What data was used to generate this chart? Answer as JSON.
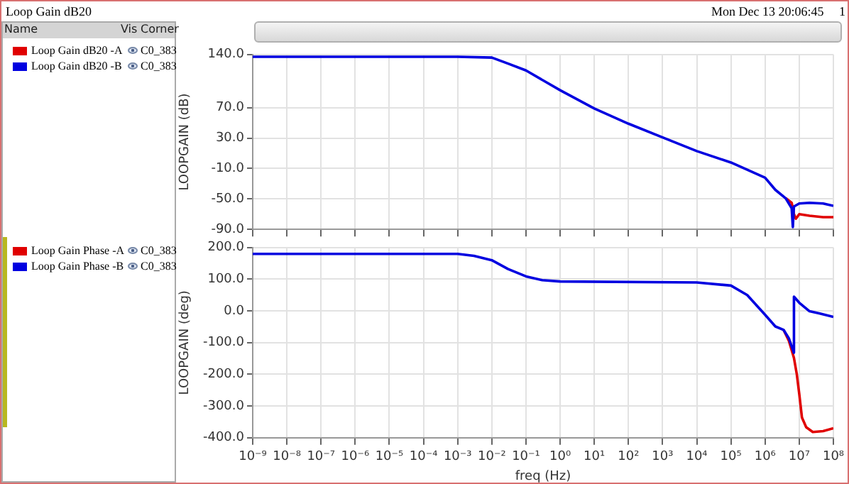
{
  "chart_data": [
    {
      "type": "line",
      "ylabel": "LOOPGAIN (dB)",
      "log": "x",
      "grid": true,
      "legend": "left",
      "tick_labels": "y",
      "annotations": [
        "Loop Gain dB20",
        "Mon Dec 13 20:06:45",
        "1",
        "Name",
        "Vis",
        "Corner",
        "C0_383"
      ],
      "xlim": [
        1e-09,
        100000000.0
      ],
      "xticks": [
        {
          "value": 1e-09,
          "label": null
        },
        {
          "value": 1e-08,
          "label": null
        },
        {
          "value": 1e-07,
          "label": null
        },
        {
          "value": 1e-06,
          "label": null
        },
        {
          "value": 1e-05,
          "label": null
        },
        {
          "value": 0.0001,
          "label": null
        },
        {
          "value": 0.001,
          "label": null
        },
        {
          "value": 0.01,
          "label": null
        },
        {
          "value": 0.1,
          "label": null
        },
        {
          "value": 1,
          "label": null
        },
        {
          "value": 10,
          "label": null
        },
        {
          "value": 100,
          "label": null
        },
        {
          "value": 1000,
          "label": null
        },
        {
          "value": 10000.0,
          "label": null
        },
        {
          "value": 100000.0,
          "label": null
        },
        {
          "value": 1000000.0,
          "label": null
        },
        {
          "value": 10000000.0,
          "label": null
        },
        {
          "value": 100000000.0,
          "label": null
        }
      ],
      "ylim": [
        -90,
        140
      ],
      "yticks": [
        {
          "value": 140,
          "label": "140.0"
        },
        {
          "value": 70,
          "label": "70.0"
        },
        {
          "value": 30,
          "label": "30.0"
        },
        {
          "value": -10,
          "label": "-10.0"
        },
        {
          "value": -50,
          "label": "-50.0"
        },
        {
          "value": -90,
          "label": "-90.0"
        }
      ],
      "series": [
        {
          "name": "Loop Gain dB20 -A",
          "color": "#e00000",
          "x": [
            4000000.0,
            6000000.0,
            6500000.0,
            7000000.0,
            8000000.0,
            10000000.0,
            20000000.0,
            50000000.0,
            100000000.0
          ],
          "values": [
            -49,
            -55,
            -62,
            -70,
            -76,
            -70,
            -72,
            -74,
            -74
          ]
        },
        {
          "name": "Loop Gain dB20 -B",
          "color": "#0000e0",
          "x": [
            1e-09,
            0.001,
            0.01,
            0.03,
            0.1,
            1,
            10,
            100,
            1000,
            10000.0,
            100000.0,
            1000000.0,
            2000000.0,
            4000000.0,
            6000000.0,
            6500000.0,
            7000000.0,
            10000000.0,
            20000000.0,
            50000000.0,
            100000000.0
          ],
          "values": [
            137,
            137,
            136,
            128,
            119,
            93,
            69,
            49,
            31,
            13,
            -2,
            -22,
            -38,
            -49,
            -62,
            -87,
            -60,
            -56,
            -55,
            -56,
            -59
          ]
        }
      ]
    },
    {
      "type": "line",
      "xlabel": "freq (Hz)",
      "ylabel": "LOOPGAIN (deg)",
      "log": "x",
      "grid": true,
      "legend": "left",
      "annotations": [
        "C0_383"
      ],
      "xlim": [
        1e-09,
        100000000.0
      ],
      "xticks": [
        {
          "value": 1e-09,
          "label": "10⁻⁹"
        },
        {
          "value": 1e-08,
          "label": "10⁻⁸"
        },
        {
          "value": 1e-07,
          "label": "10⁻⁷"
        },
        {
          "value": 1e-06,
          "label": "10⁻⁶"
        },
        {
          "value": 1e-05,
          "label": "10⁻⁵"
        },
        {
          "value": 0.0001,
          "label": "10⁻⁴"
        },
        {
          "value": 0.001,
          "label": "10⁻³"
        },
        {
          "value": 0.01,
          "label": "10⁻²"
        },
        {
          "value": 0.1,
          "label": "10⁻¹"
        },
        {
          "value": 1,
          "label": "10⁰"
        },
        {
          "value": 10,
          "label": "10¹"
        },
        {
          "value": 100,
          "label": "10²"
        },
        {
          "value": 1000,
          "label": "10³"
        },
        {
          "value": 10000.0,
          "label": "10⁴"
        },
        {
          "value": 100000.0,
          "label": "10⁵"
        },
        {
          "value": 1000000.0,
          "label": "10⁶"
        },
        {
          "value": 10000000.0,
          "label": "10⁷"
        },
        {
          "value": 100000000.0,
          "label": "10⁸"
        }
      ],
      "ylim": [
        -400,
        200
      ],
      "yticks": [
        {
          "value": 200,
          "label": "200.0"
        },
        {
          "value": 100,
          "label": "100.0"
        },
        {
          "value": 0,
          "label": "0.0"
        },
        {
          "value": -100,
          "label": "-100.0"
        },
        {
          "value": -200,
          "label": "-200.0"
        },
        {
          "value": -300,
          "label": "-300.0"
        },
        {
          "value": -400,
          "label": "-400.0"
        }
      ],
      "series": [
        {
          "name": "Loop Gain Phase -A",
          "color": "#e00000",
          "x": [
            3500000.0,
            5000000.0,
            7000000.0,
            8500000.0,
            10000000.0,
            12000000.0,
            16000000.0,
            25000000.0,
            50000000.0,
            100000000.0
          ],
          "values": [
            -60,
            -95,
            -148,
            -200,
            -261,
            -336,
            -367,
            -382,
            -379,
            -370
          ]
        },
        {
          "name": "Loop Gain Phase -B",
          "color": "#0000e0",
          "x": [
            1e-09,
            0.0001,
            0.001,
            0.003,
            0.01,
            0.03,
            0.1,
            0.3,
            1,
            10000.0,
            100000.0,
            300000.0,
            1000000.0,
            2000000.0,
            3500000.0,
            5000000.0,
            7000000.0,
            7010000.0,
            10000000.0,
            20000000.0,
            40000000.0,
            100000000.0
          ],
          "values": [
            180,
            180,
            180,
            174,
            160,
            132,
            109,
            97,
            93,
            90,
            80,
            50,
            -12,
            -49,
            -60,
            -87,
            -132,
            45,
            26,
            -1,
            -8,
            -19
          ]
        }
      ]
    }
  ]
}
